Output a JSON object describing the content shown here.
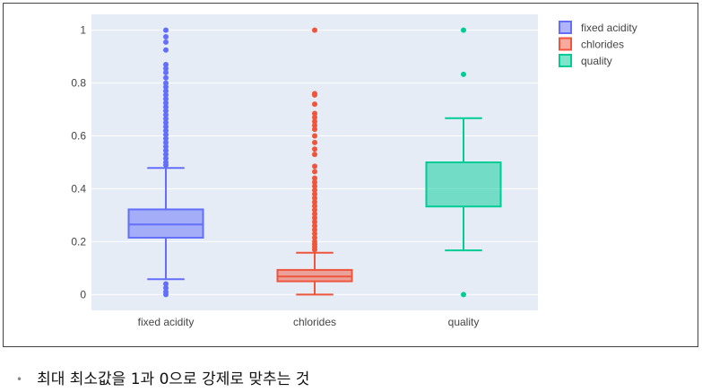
{
  "chart_data": {
    "type": "box",
    "categories": [
      "fixed acidity",
      "chlorides",
      "quality"
    ],
    "ylim": [
      -0.06,
      1.06
    ],
    "yticks": [
      0,
      0.2,
      0.4,
      0.6,
      0.8,
      1
    ],
    "ytick_labels": [
      "0",
      "0.2",
      "0.4",
      "0.6",
      "0.8",
      "1"
    ],
    "legend_position": "top-right",
    "grid": true,
    "series": [
      {
        "name": "fixed acidity",
        "color": "#636efa",
        "whisker_low": 0.058,
        "q1": 0.215,
        "median": 0.265,
        "q3": 0.322,
        "whisker_high": 0.479,
        "outliers": [
          1.0,
          0.975,
          0.955,
          0.925,
          0.87,
          0.855,
          0.84,
          0.82,
          0.8,
          0.785,
          0.77,
          0.755,
          0.74,
          0.725,
          0.71,
          0.695,
          0.68,
          0.665,
          0.65,
          0.635,
          0.62,
          0.605,
          0.59,
          0.575,
          0.56,
          0.545,
          0.53,
          0.515,
          0.5,
          0.49,
          0.04,
          0.025,
          0.01,
          0.0
        ]
      },
      {
        "name": "chlorides",
        "color": "#ef553b",
        "whisker_low": 0.0,
        "q1": 0.05,
        "median": 0.068,
        "q3": 0.093,
        "whisker_high": 0.158,
        "outliers": [
          1.0,
          0.76,
          0.755,
          0.72,
          0.685,
          0.67,
          0.655,
          0.64,
          0.625,
          0.6,
          0.575,
          0.55,
          0.53,
          0.485,
          0.465,
          0.44,
          0.425,
          0.41,
          0.395,
          0.38,
          0.365,
          0.35,
          0.335,
          0.32,
          0.305,
          0.29,
          0.275,
          0.26,
          0.245,
          0.23,
          0.215,
          0.2,
          0.19,
          0.18,
          0.17
        ]
      },
      {
        "name": "quality",
        "color": "#00cc96",
        "whisker_low": 0.167,
        "q1": 0.333,
        "median": 0.5,
        "q3": 0.5,
        "whisker_high": 0.667,
        "outliers": [
          1.0,
          0.833,
          0.0
        ]
      }
    ]
  },
  "note": {
    "bullet": "•",
    "text": "최대 최소값을 1과 0으로 강제로 맞추는 것"
  }
}
